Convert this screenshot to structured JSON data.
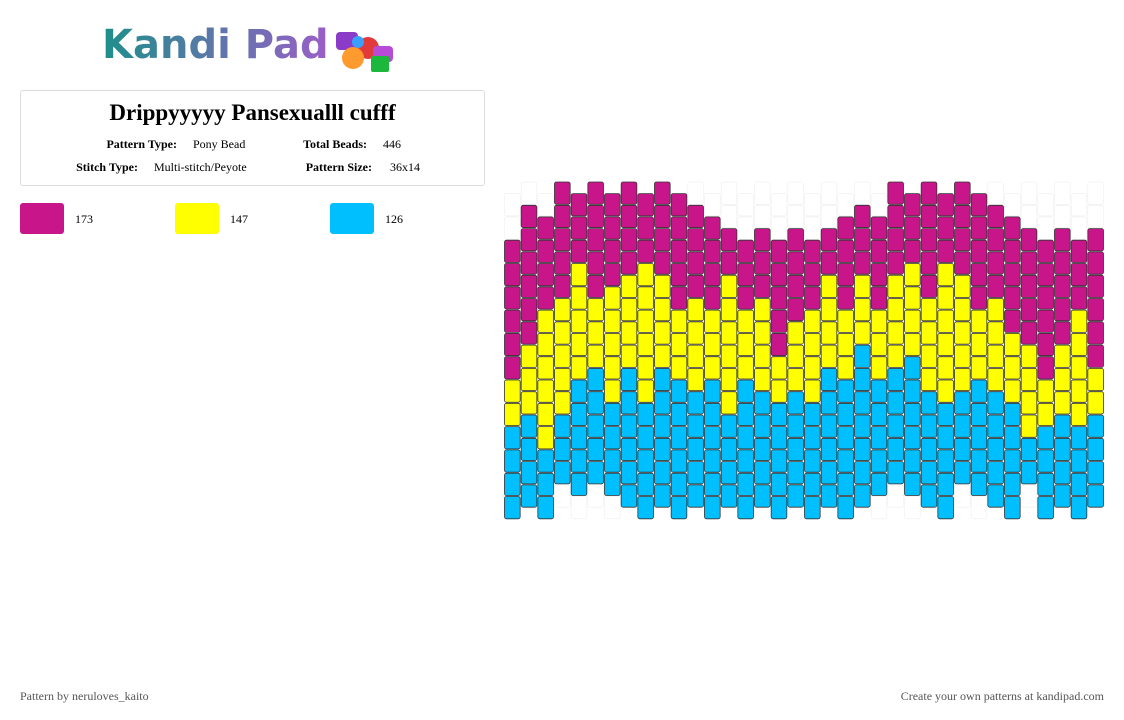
{
  "header": {
    "logo": "Kandi Pad"
  },
  "pattern": {
    "title": "Drippyyyyy Pansexualll cufff",
    "info": [
      {
        "label": "Pattern Type:",
        "value": "Pony Bead",
        "label2": "Total Beads:",
        "value2": "446"
      },
      {
        "label": "Stitch Type:",
        "value": "Multi-stitch/Peyote",
        "label2": "Pattern Size:",
        "value2": "36x14"
      }
    ],
    "colors": [
      {
        "color": "#c8168a",
        "count": "173"
      },
      {
        "color": "#ffff00",
        "count": "147"
      },
      {
        "color": "#00bfff",
        "count": "126"
      }
    ]
  },
  "footer": {
    "left": "Pattern by neruloves_kaito",
    "right": "Create your own patterns at kandipad.com"
  }
}
